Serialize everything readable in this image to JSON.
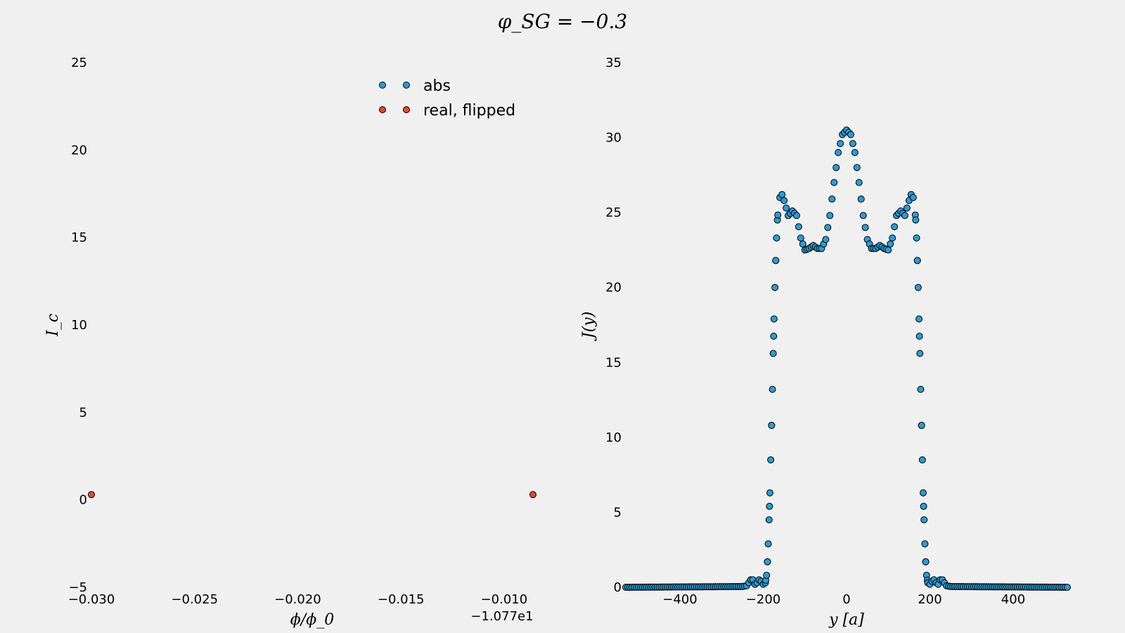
{
  "figure": {
    "title": "φ_SG = −0.3"
  },
  "chart_data": [
    {
      "type": "scatter",
      "ylabel": "I_c",
      "xlabel": "ϕ/ϕ_0",
      "x_offset_label": "−1.077e1",
      "xlim": [
        -0.03,
        -0.0086
      ],
      "ylim": [
        -5,
        25
      ],
      "xticks": [
        -0.03,
        -0.025,
        -0.02,
        -0.015,
        -0.01
      ],
      "xtick_labels": [
        "−0.030",
        "−0.025",
        "−0.020",
        "−0.015",
        "−0.010"
      ],
      "yticks": [
        -5,
        0,
        5,
        10,
        15,
        20,
        25
      ],
      "ytick_labels": [
        "−5",
        "0",
        "5",
        "10",
        "15",
        "20",
        "25"
      ],
      "grid": false,
      "legend_position": "top-right",
      "series": [
        {
          "name": "abs",
          "color": "#2f9ad3",
          "points": []
        },
        {
          "name": "real, flipped",
          "color": "#e2492c",
          "points": [
            [
              -0.03,
              0.3
            ],
            [
              -0.0086,
              0.3
            ]
          ]
        }
      ]
    },
    {
      "type": "scatter",
      "ylabel": "J(y)",
      "xlabel": "y [a]",
      "xlim": [
        -530,
        530
      ],
      "ylim": [
        0,
        35
      ],
      "xticks": [
        -400,
        -200,
        0,
        200,
        400
      ],
      "xtick_labels": [
        "−400",
        "−200",
        "0",
        "200",
        "400"
      ],
      "yticks": [
        0,
        5,
        10,
        15,
        20,
        25,
        30,
        35
      ],
      "ytick_labels": [
        "0",
        "5",
        "10",
        "15",
        "20",
        "25",
        "30",
        "35"
      ],
      "grid": false,
      "series": [
        {
          "color": "#2f9ad3",
          "profile": [
            [
              0,
              30.5
            ],
            [
              10,
              30.2
            ],
            [
              20,
              29.0
            ],
            [
              30,
              27.0
            ],
            [
              40,
              24.8
            ],
            [
              50,
              23.2
            ],
            [
              60,
              22.6
            ],
            [
              70,
              22.6
            ],
            [
              80,
              22.8
            ],
            [
              90,
              22.6
            ],
            [
              100,
              22.5
            ],
            [
              110,
              23.3
            ],
            [
              120,
              24.8
            ],
            [
              130,
              25.1
            ],
            [
              140,
              24.8
            ],
            [
              150,
              25.8
            ],
            [
              155,
              26.2
            ],
            [
              160,
              26.0
            ],
            [
              163,
              25.5
            ],
            [
              166,
              24.5
            ],
            [
              168,
              23.3
            ],
            [
              170,
              21.8
            ],
            [
              172,
              20.0
            ],
            [
              174,
              17.9
            ],
            [
              176,
              15.6
            ],
            [
              178,
              13.2
            ],
            [
              180,
              10.8
            ],
            [
              182,
              8.5
            ],
            [
              184,
              6.3
            ],
            [
              186,
              4.5
            ],
            [
              188,
              2.9
            ],
            [
              190,
              1.7
            ],
            [
              192,
              0.8
            ],
            [
              195,
              0.3
            ],
            [
              200,
              0.2
            ],
            [
              205,
              0.4
            ],
            [
              210,
              0.5
            ],
            [
              215,
              0.3
            ],
            [
              220,
              0.2
            ],
            [
              225,
              0.5
            ],
            [
              230,
              0.5
            ],
            [
              235,
              0.3
            ],
            [
              240,
              0.1
            ],
            [
              250,
              0.05
            ],
            [
              530,
              0.0
            ]
          ]
        }
      ]
    }
  ]
}
